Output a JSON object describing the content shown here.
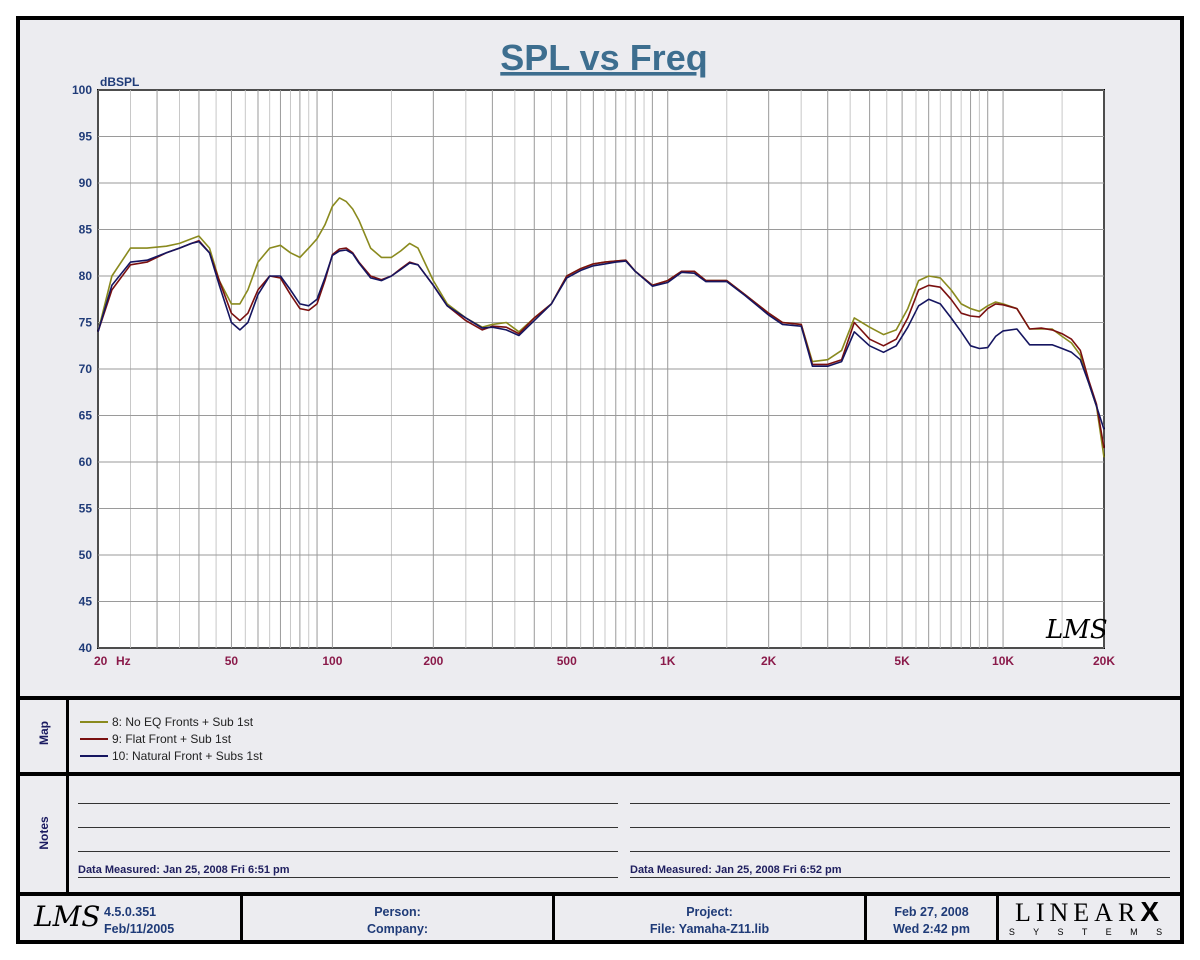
{
  "chart_data": {
    "type": "line",
    "title": "SPL vs Freq",
    "ylabel": "dBSPL",
    "xscale": "log",
    "xlim": [
      20,
      20000
    ],
    "ylim": [
      40,
      100
    ],
    "yticks": [
      40,
      45,
      50,
      55,
      60,
      65,
      70,
      75,
      80,
      85,
      90,
      95,
      100
    ],
    "xtick_labels": [
      {
        "value": 20,
        "label": "20"
      },
      {
        "value": 50,
        "label": "50"
      },
      {
        "value": 100,
        "label": "100"
      },
      {
        "value": 200,
        "label": "200"
      },
      {
        "value": 500,
        "label": "500"
      },
      {
        "value": 1000,
        "label": "1K"
      },
      {
        "value": 2000,
        "label": "2K"
      },
      {
        "value": 5000,
        "label": "5K"
      },
      {
        "value": 10000,
        "label": "10K"
      },
      {
        "value": 20000,
        "label": "20K"
      }
    ],
    "x_unit": "Hz",
    "grid": true,
    "series": [
      {
        "name": "8: No EQ Fronts + Sub 1st",
        "color": "#8a8a1e",
        "x": [
          20,
          22,
          25,
          28,
          32,
          35,
          38,
          40,
          43,
          46,
          50,
          53,
          56,
          60,
          65,
          70,
          75,
          80,
          85,
          90,
          95,
          100,
          105,
          110,
          115,
          120,
          130,
          140,
          150,
          160,
          170,
          180,
          200,
          220,
          250,
          280,
          300,
          330,
          360,
          400,
          450,
          500,
          550,
          600,
          650,
          700,
          750,
          800,
          900,
          1000,
          1100,
          1200,
          1300,
          1500,
          1700,
          2000,
          2200,
          2500,
          2700,
          3000,
          3300,
          3600,
          4000,
          4400,
          4800,
          5200,
          5600,
          6000,
          6500,
          7000,
          7500,
          8000,
          8500,
          9000,
          9500,
          10000,
          11000,
          12000,
          13000,
          14000,
          15000,
          16000,
          17000,
          18000,
          19000,
          20000
        ],
        "y": [
          74,
          80,
          83,
          83,
          83.2,
          83.5,
          84,
          84.3,
          83,
          79.5,
          77,
          77,
          78.5,
          81.5,
          83,
          83.3,
          82.5,
          82,
          83,
          84,
          85.5,
          87.5,
          88.4,
          88,
          87.2,
          86,
          83,
          82,
          82,
          82.7,
          83.5,
          83,
          79.5,
          77,
          75.5,
          74.5,
          74.8,
          75,
          74,
          75.5,
          77,
          80,
          80.8,
          81.3,
          81.5,
          81.6,
          81.7,
          80.5,
          79,
          79.5,
          80.5,
          80.5,
          79.5,
          79.5,
          78,
          76,
          75,
          74.8,
          70.8,
          71,
          72,
          75.5,
          74.5,
          73.7,
          74.2,
          76.5,
          79.5,
          80,
          79.8,
          78.5,
          77,
          76.5,
          76.2,
          76.8,
          77.2,
          77,
          76.5,
          74.3,
          74.3,
          74.3,
          73.5,
          72.8,
          71.5,
          68.5,
          66,
          60.5
        ]
      },
      {
        "name": "9: Flat Front + Sub 1st",
        "color": "#7a1010",
        "x": [
          20,
          22,
          25,
          28,
          32,
          35,
          38,
          40,
          43,
          46,
          50,
          53,
          56,
          60,
          65,
          70,
          75,
          80,
          85,
          90,
          95,
          100,
          105,
          110,
          115,
          120,
          130,
          140,
          150,
          160,
          170,
          180,
          200,
          220,
          250,
          280,
          300,
          330,
          360,
          400,
          450,
          500,
          550,
          600,
          650,
          700,
          750,
          800,
          900,
          1000,
          1100,
          1200,
          1300,
          1500,
          1700,
          2000,
          2200,
          2500,
          2700,
          3000,
          3300,
          3600,
          4000,
          4400,
          4800,
          5200,
          5600,
          6000,
          6500,
          7000,
          7500,
          8000,
          8500,
          9000,
          9500,
          10000,
          11000,
          12000,
          13000,
          14000,
          15000,
          16000,
          17000,
          18000,
          19000,
          20000
        ],
        "y": [
          74,
          78.5,
          81.2,
          81.5,
          82.5,
          83,
          83.5,
          83.8,
          82.5,
          79.5,
          76,
          75.2,
          76,
          78.5,
          80,
          79.8,
          78,
          76.5,
          76.3,
          77,
          79.5,
          82.3,
          82.9,
          83,
          82.5,
          81.5,
          80,
          79.6,
          80,
          80.8,
          81.5,
          81.2,
          79,
          76.8,
          75.2,
          74.2,
          74.6,
          74.5,
          73.8,
          75.5,
          77,
          80,
          80.8,
          81.3,
          81.5,
          81.6,
          81.7,
          80.5,
          79,
          79.5,
          80.5,
          80.5,
          79.5,
          79.5,
          78,
          76,
          75,
          74.8,
          70.5,
          70.5,
          71,
          75,
          73.2,
          72.5,
          73.2,
          75.5,
          78.5,
          79,
          78.8,
          77.5,
          76,
          75.7,
          75.6,
          76.5,
          77,
          76.9,
          76.5,
          74.3,
          74.4,
          74.2,
          73.8,
          73.2,
          72,
          68.8,
          66.2,
          61.5
        ]
      },
      {
        "name": "10: Natural Front + Subs 1st",
        "color": "#151560",
        "x": [
          20,
          22,
          25,
          28,
          32,
          35,
          38,
          40,
          43,
          46,
          50,
          53,
          56,
          60,
          65,
          70,
          75,
          80,
          85,
          90,
          95,
          100,
          105,
          110,
          115,
          120,
          130,
          140,
          150,
          160,
          170,
          180,
          200,
          220,
          250,
          280,
          300,
          330,
          360,
          400,
          450,
          500,
          550,
          600,
          650,
          700,
          750,
          800,
          900,
          1000,
          1100,
          1200,
          1300,
          1500,
          1700,
          2000,
          2200,
          2500,
          2700,
          3000,
          3300,
          3600,
          4000,
          4400,
          4800,
          5200,
          5600,
          6000,
          6500,
          7000,
          7500,
          8000,
          8500,
          9000,
          9500,
          10000,
          11000,
          12000,
          13000,
          14000,
          15000,
          16000,
          17000,
          18000,
          19000,
          20000
        ],
        "y": [
          74,
          79,
          81.5,
          81.7,
          82.5,
          83,
          83.5,
          83.7,
          82.5,
          79,
          75,
          74.2,
          75,
          78,
          80,
          80,
          78.5,
          77,
          76.8,
          77.5,
          79.8,
          82.2,
          82.7,
          82.8,
          82.4,
          81.4,
          79.8,
          79.5,
          80,
          80.7,
          81.4,
          81.2,
          79,
          76.8,
          75.5,
          74.4,
          74.5,
          74.2,
          73.6,
          75.2,
          77,
          79.8,
          80.6,
          81.1,
          81.3,
          81.5,
          81.6,
          80.5,
          78.9,
          79.3,
          80.4,
          80.3,
          79.4,
          79.4,
          77.9,
          75.8,
          74.8,
          74.6,
          70.3,
          70.3,
          70.8,
          74,
          72.5,
          71.8,
          72.5,
          74.5,
          76.8,
          77.5,
          77,
          75.5,
          74,
          72.5,
          72.2,
          72.3,
          73.5,
          74.1,
          74.3,
          72.6,
          72.6,
          72.6,
          72.2,
          71.8,
          71,
          68.5,
          66,
          63.5
        ]
      }
    ]
  },
  "map_label": "Map",
  "notes_label": "Notes",
  "notes": {
    "left": "Data Measured: Jan 25, 2008  Fri  6:51 pm",
    "right": "Data Measured: Jan 25, 2008  Fri  6:52 pm"
  },
  "footer": {
    "version": "4.5.0.351",
    "build_date": "Feb/11/2005",
    "person_label": "Person:",
    "company_label": "Company:",
    "project_label": "Project:",
    "file_label": "File: Yamaha-Z11.lib",
    "date": "Feb 27, 2008",
    "day_time": "Wed  2:42 pm",
    "brand_top": "LINEAR",
    "brand_x": "X",
    "brand_bottom": "S Y S T E M S",
    "lms_logo": "LMS"
  }
}
